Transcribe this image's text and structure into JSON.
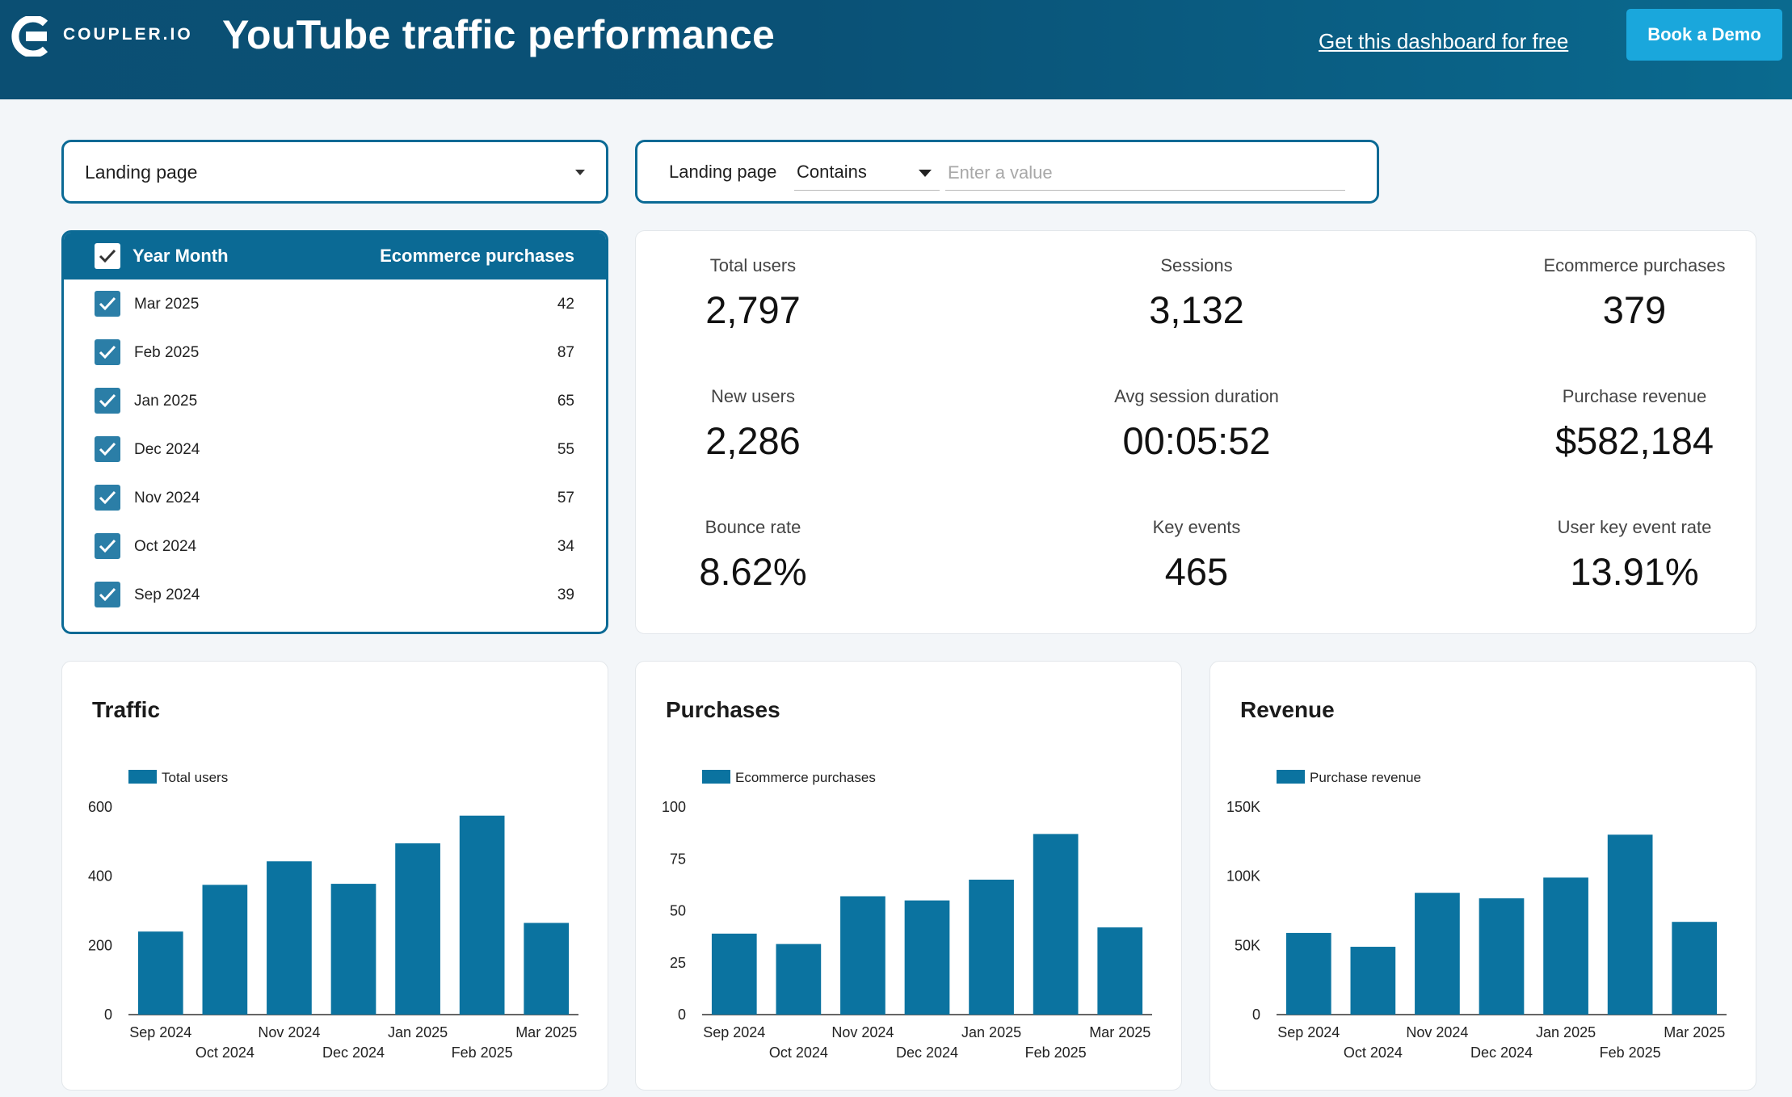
{
  "header": {
    "logo_text": "COUPLER.IO",
    "title": "YouTube traffic performance",
    "get_link": "Get this dashboard for free",
    "demo_button": "Book a Demo"
  },
  "filters": {
    "dropdown_label": "Landing page",
    "text_filter_label": "Landing page",
    "operator": "Contains",
    "value_placeholder": "Enter a value"
  },
  "table": {
    "col1": "Year Month",
    "col2": "Ecommerce purchases",
    "rows": [
      {
        "month": "Mar 2025",
        "value": "42"
      },
      {
        "month": "Feb 2025",
        "value": "87"
      },
      {
        "month": "Jan 2025",
        "value": "65"
      },
      {
        "month": "Dec 2024",
        "value": "55"
      },
      {
        "month": "Nov 2024",
        "value": "57"
      },
      {
        "month": "Oct 2024",
        "value": "34"
      },
      {
        "month": "Sep 2024",
        "value": "39"
      }
    ]
  },
  "kpis": [
    {
      "label": "Total users",
      "value": "2,797"
    },
    {
      "label": "Sessions",
      "value": "3,132"
    },
    {
      "label": "Ecommerce purchases",
      "value": "379"
    },
    {
      "label": "New users",
      "value": "2,286"
    },
    {
      "label": "Avg session duration",
      "value": "00:05:52"
    },
    {
      "label": "Purchase revenue",
      "value": "$582,184"
    },
    {
      "label": "Bounce rate",
      "value": "8.62%"
    },
    {
      "label": "Key events",
      "value": "465"
    },
    {
      "label": "User key event rate",
      "value": "13.91%"
    }
  ],
  "colors": {
    "bar": "#0b73a0",
    "accent": "#0b6a95",
    "button": "#1aa7dc"
  },
  "chart_data": [
    {
      "type": "bar",
      "title": "Traffic",
      "legend": "Total users",
      "categories": [
        "Sep 2024",
        "Oct 2024",
        "Nov 2024",
        "Dec 2024",
        "Jan 2025",
        "Feb 2025",
        "Mar 2025"
      ],
      "values": [
        240,
        375,
        443,
        378,
        495,
        575,
        265
      ],
      "ylim": [
        0,
        600
      ],
      "yticks": [
        0,
        200,
        400,
        600
      ],
      "ytick_labels": [
        "0",
        "200",
        "400",
        "600"
      ]
    },
    {
      "type": "bar",
      "title": "Purchases",
      "legend": "Ecommerce purchases",
      "categories": [
        "Sep 2024",
        "Oct 2024",
        "Nov 2024",
        "Dec 2024",
        "Jan 2025",
        "Feb 2025",
        "Mar 2025"
      ],
      "values": [
        39,
        34,
        57,
        55,
        65,
        87,
        42
      ],
      "ylim": [
        0,
        100
      ],
      "yticks": [
        0,
        25,
        50,
        75,
        100
      ],
      "ytick_labels": [
        "0",
        "25",
        "50",
        "75",
        "100"
      ]
    },
    {
      "type": "bar",
      "title": "Revenue",
      "legend": "Purchase revenue",
      "categories": [
        "Sep 2024",
        "Oct 2024",
        "Nov 2024",
        "Dec 2024",
        "Jan 2025",
        "Feb 2025",
        "Mar 2025"
      ],
      "values": [
        59000,
        49000,
        88000,
        84000,
        99000,
        130000,
        67000
      ],
      "ylim": [
        0,
        150000
      ],
      "yticks": [
        0,
        50000,
        100000,
        150000
      ],
      "ytick_labels": [
        "0",
        "50K",
        "100K",
        "150K"
      ]
    }
  ]
}
